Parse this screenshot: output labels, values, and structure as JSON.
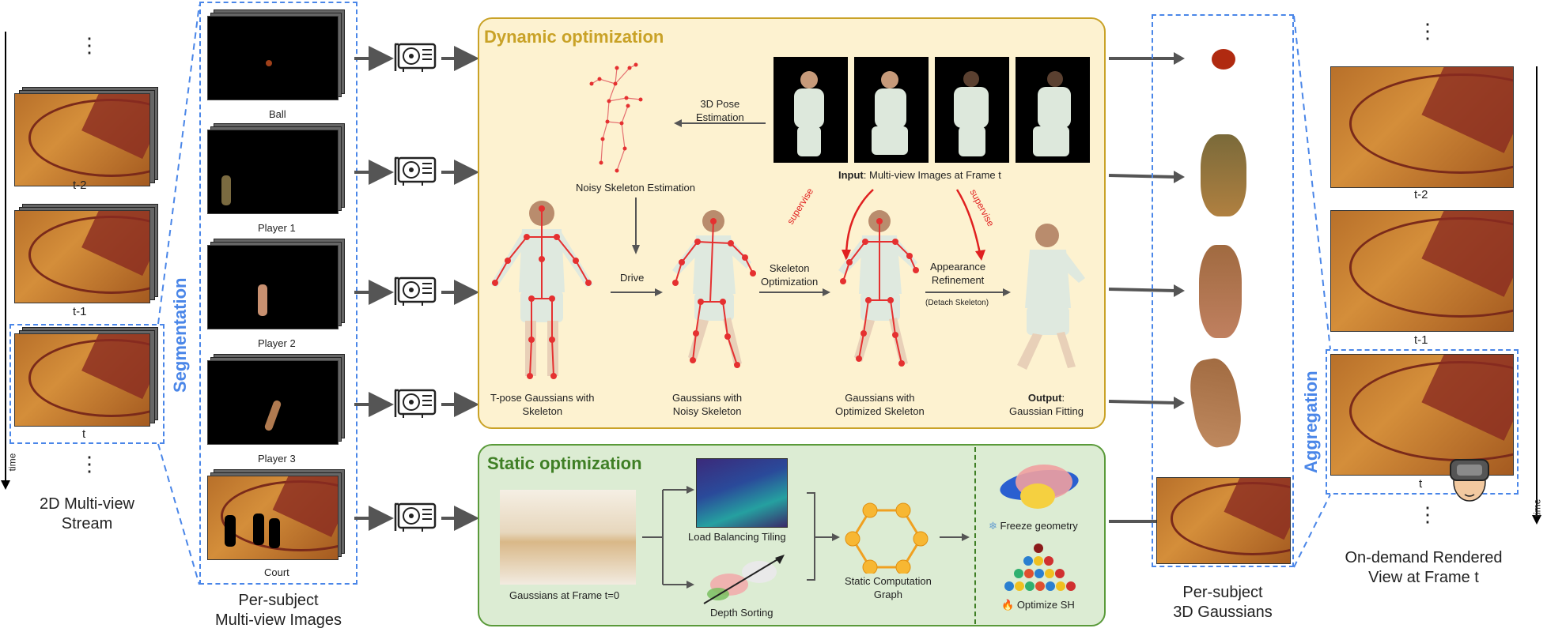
{
  "left": {
    "frame_labels": [
      "t-2",
      "t-1",
      "t"
    ],
    "dots_top": "⋮",
    "dots_bottom": "⋮",
    "time_label": "time",
    "caption": "2D Multi-view\nStream",
    "caption_line1": "2D Multi-view",
    "caption_line2": "Stream"
  },
  "segmentation_label": "Segmentation",
  "subjects": {
    "labels": [
      "Ball",
      "Player 1",
      "Player 2",
      "Player 3",
      "Court"
    ],
    "caption_line1": "Per-subject",
    "caption_line2": "Multi-view Images"
  },
  "dynamic": {
    "title": "Dynamic optimization",
    "pose_estimation": "3D Pose\nEstimation",
    "pose_estimation_l1": "3D Pose",
    "pose_estimation_l2": "Estimation",
    "noisy_estimation": "Noisy Skeleton Estimation",
    "input_bold": "Input",
    "input_rest": ": Multi-view Images at Frame t",
    "supervise_left": "supervise",
    "supervise_right": "supervise",
    "drive": "Drive",
    "skel_opt_l1": "Skeleton",
    "skel_opt_l2": "Optimization",
    "app_ref_l1": "Appearance",
    "app_ref_l2": "Refinement",
    "detach": "(Detach Skeleton)",
    "tpose_l1": "T-pose Gaussians with",
    "tpose_l2": "Skeleton",
    "noisy_l1": "Gaussians with",
    "noisy_l2": "Noisy Skeleton",
    "optimized_l1": "Gaussians with",
    "optimized_l2": "Optimized Skeleton",
    "output_bold": "Output",
    "output_rest": ":",
    "output_l2": "Gaussian Fitting"
  },
  "static": {
    "title": "Static optimization",
    "gaussians_frame0": "Gaussians at Frame t=0",
    "load_balancing": "Load Balancing Tiling",
    "depth_sorting": "Depth Sorting",
    "graph_l1": "Static Computation",
    "graph_l2": "Graph",
    "freeze": "Freeze geometry",
    "optimize_sh": "Optimize SH"
  },
  "gaussians_caption_l1": "Per-subject",
  "gaussians_caption_l2": "3D Gaussians",
  "aggregation_label": "Aggregation",
  "right": {
    "frame_labels": [
      "t-2",
      "t-1",
      "t"
    ],
    "dots_top": "⋮",
    "dots_bottom": "⋮",
    "time_label": "time",
    "caption_l1": "On-demand Rendered",
    "caption_l2": "View at Frame t"
  },
  "colors": {
    "blue_dash": "#4a86e8",
    "dynamic_bg": "#fdf2d0",
    "dynamic_border": "#c9a227",
    "dynamic_title": "#c9a227",
    "static_bg": "#dcecd3",
    "static_border": "#5a9a3a",
    "static_title": "#3f7f25",
    "supervise_red": "#e02020",
    "skeleton_red": "#e53030",
    "arrow_gray": "#555555"
  },
  "icons": [
    "gpu-icon",
    "vr-headset-icon",
    "snowflake-icon",
    "fire-icon"
  ]
}
